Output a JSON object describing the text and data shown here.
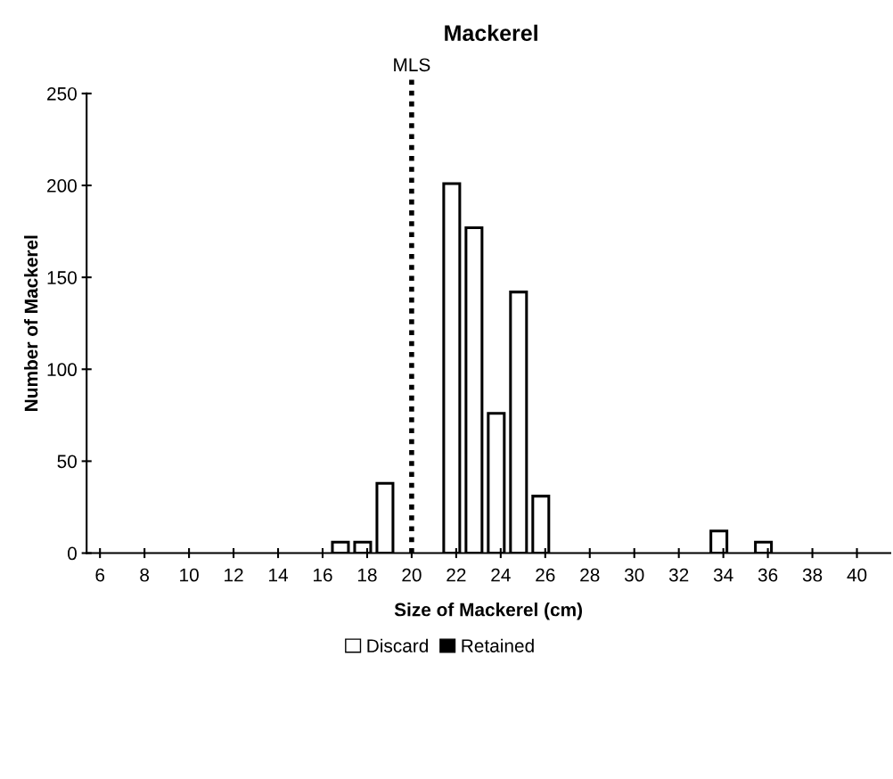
{
  "chart_data": {
    "type": "bar",
    "title": "Mackerel",
    "xlabel": "Size of Mackerel (cm)",
    "ylabel": "Number of Mackerel",
    "x": [
      6,
      7,
      8,
      9,
      10,
      11,
      12,
      13,
      14,
      15,
      16,
      17,
      18,
      19,
      20,
      21,
      22,
      23,
      24,
      25,
      26,
      27,
      28,
      29,
      30,
      31,
      32,
      33,
      34,
      35,
      36,
      37,
      38,
      39,
      40,
      41
    ],
    "series": [
      {
        "name": "Discard",
        "color": "#ffffff",
        "values": [
          0,
          0,
          0,
          0,
          0,
          0,
          0,
          0,
          0,
          0,
          0,
          6,
          6,
          38,
          0,
          0,
          201,
          177,
          76,
          142,
          31,
          0,
          0,
          0,
          0,
          0,
          0,
          0,
          12,
          0,
          6,
          0,
          0,
          0,
          0,
          0
        ]
      },
      {
        "name": "Retained",
        "color": "#000000",
        "values": [
          0,
          0,
          0,
          0,
          0,
          0,
          0,
          0,
          0,
          0,
          0,
          0,
          0,
          0,
          0,
          0,
          0,
          0,
          0,
          0,
          0,
          0,
          0,
          0,
          0,
          0,
          0,
          0,
          0,
          0,
          0,
          0,
          0,
          0,
          0,
          0
        ]
      }
    ],
    "xlim": [
      5.4,
      41.5
    ],
    "xticks": [
      6,
      8,
      10,
      12,
      14,
      16,
      18,
      20,
      22,
      24,
      26,
      28,
      30,
      32,
      34,
      36,
      38,
      40
    ],
    "ylim": [
      0,
      250
    ],
    "yticks": [
      0,
      50,
      100,
      150,
      200,
      250
    ],
    "ref_lines": [
      {
        "axis": "x",
        "value": 20,
        "label": "MLS",
        "color": "#000000",
        "line_style": "dotted"
      }
    ],
    "grid": false,
    "legend": "bottom"
  }
}
